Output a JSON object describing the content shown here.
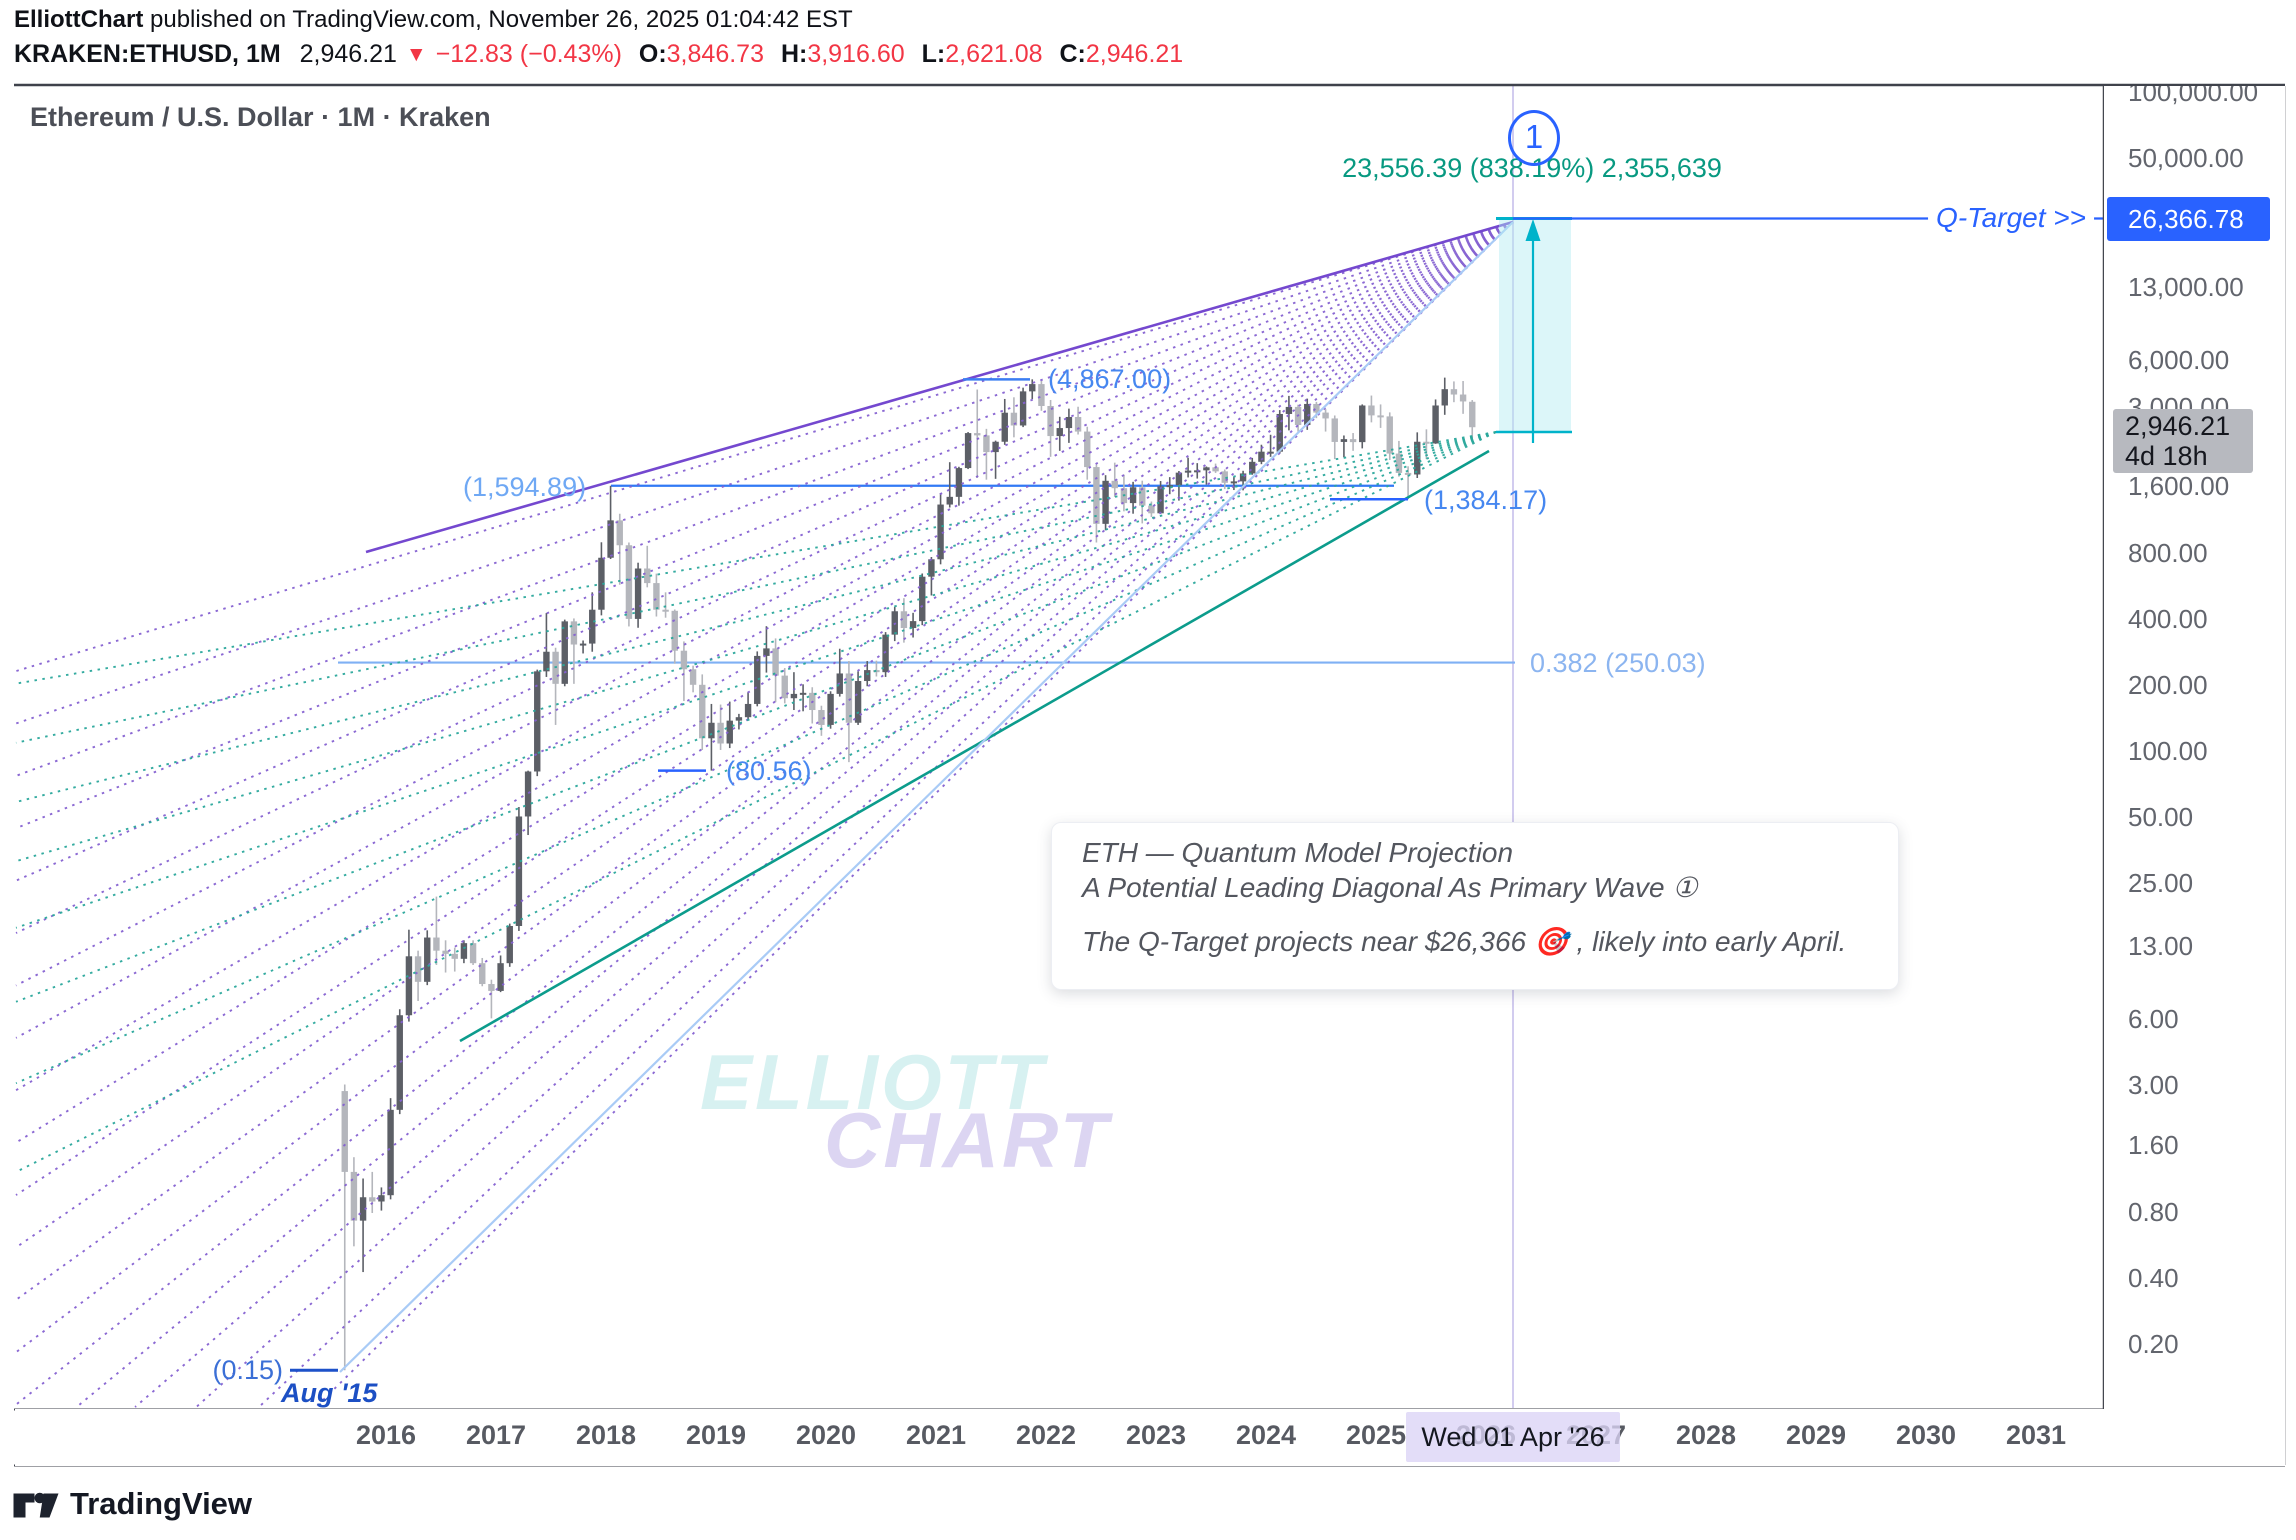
{
  "header": {
    "publisher": "ElliottChart",
    "published_suffix": " published on TradingView.com, November 26, 2025 01:04:42 EST",
    "symbol_interval": "KRAKEN:ETHUSD, 1M",
    "last_price": "2,946.21",
    "change_text": "−12.83 (−0.43%)",
    "open_label": "O:",
    "open": "3,846.73",
    "high_label": "H:",
    "high": "3,916.60",
    "low_label": "L:",
    "low": "2,621.08",
    "close_label": "C:",
    "close": "2,946.21"
  },
  "chart": {
    "title": "Ethereum / U.S. Dollar · 1M · Kraken",
    "watermark": {
      "line1": "ELLIOTT",
      "line2": "CHART"
    }
  },
  "annotations": {
    "wave_label": "1",
    "projection_text": "23,556.39 (838.19%) 2,355,639",
    "q_target_label": "Q-Target >>",
    "high_2021": "(4,867.00)",
    "high_2018": "(1,594.89)",
    "low_2025": "(1,384.17)",
    "low_2018": "(80.56)",
    "origin_low": "(0.15)",
    "origin_date": "Aug '15",
    "fib_level": "0.382 (250.03)"
  },
  "tooltip": {
    "line1": "ETH — Quantum Model Projection",
    "line2": "A Potential Leading Diagonal As Primary Wave ①",
    "line3": "The Q-Target projects near $26,366 🎯 , likely into early April."
  },
  "price_scale": {
    "ticks": [
      "100,000.00",
      "50,000.00",
      "13,000.00",
      "6,000.00",
      "1,600.00",
      "800.00",
      "400.00",
      "200.00",
      "100.00",
      "50.00",
      "25.00",
      "13.00",
      "6.00",
      "3.00",
      "1.60",
      "0.80",
      "0.40",
      "0.20"
    ],
    "hidden_tick": "3,000.00",
    "target_badge": "26,366.78",
    "price_badge": "2,946.21",
    "countdown": "4d 18h"
  },
  "time_axis": {
    "years": [
      "2016",
      "2017",
      "2018",
      "2019",
      "2020",
      "2021",
      "2022",
      "2023",
      "2024",
      "2025",
      "2026",
      "2027",
      "2028",
      "2029",
      "2030",
      "2031"
    ],
    "crosshair_label": "Wed 01 Apr '26"
  },
  "footer": {
    "brand": "TradingView"
  },
  "colors": {
    "accent_blue": "#2962ff",
    "teal_text": "#089981",
    "cyan_tool": "#00b3ca",
    "purple_line": "#7448cf",
    "purple_dotted": "#8561d1",
    "teal_dotted": "#2aa79b",
    "teal_solid": "#0c9c8c",
    "light_blue_line": "#a9cbf6",
    "red": "#f23645",
    "candle_up": "#5c5f66",
    "candle_down": "#b4b6bc",
    "crosshair": "#c7bfeb"
  },
  "chart_data": {
    "type": "candlestick",
    "symbol": "KRAKEN:ETHUSD",
    "interval": "1M",
    "scale": "logarithmic",
    "title": "Ethereum / U.S. Dollar · 1M · Kraken",
    "x_axis_years": [
      2016,
      2017,
      2018,
      2019,
      2020,
      2021,
      2022,
      2023,
      2024,
      2025,
      2026,
      2027,
      2028,
      2029,
      2030,
      2031
    ],
    "price_axis_ticks": [
      100000,
      50000,
      13000,
      6000,
      3000,
      1600,
      800,
      400,
      200,
      100,
      50,
      25,
      13,
      6,
      3,
      1.6,
      0.8,
      0.4,
      0.2
    ],
    "key_levels": {
      "q_target_price": 26366.78,
      "projection_price": 23556.39,
      "projection_percent": 838.19,
      "projection_alt_value": 2355639,
      "wave3_high_2021": 4867.0,
      "wave1_high_2018": 1594.89,
      "wave4_low_2025": 1384.17,
      "wave2_low_2018": 80.56,
      "origin_low_aug_2015": 0.15,
      "fib_0382_retrace": 250.03,
      "last_close": 2946.21,
      "apex_date_label": "Wed 01 Apr '26"
    },
    "candles_ohlc": [
      [
        2015,
        8,
        2.8,
        3.0,
        0.15,
        1.2
      ],
      [
        2015,
        9,
        1.2,
        1.4,
        0.55,
        0.72
      ],
      [
        2015,
        10,
        0.72,
        1.12,
        0.42,
        0.92
      ],
      [
        2015,
        11,
        0.92,
        1.2,
        0.78,
        0.88
      ],
      [
        2015,
        12,
        0.88,
        1.02,
        0.8,
        0.94
      ],
      [
        2016,
        1,
        0.94,
        2.6,
        0.9,
        2.3
      ],
      [
        2016,
        2,
        2.3,
        6.6,
        2.2,
        6.2
      ],
      [
        2016,
        3,
        6.2,
        15.2,
        5.8,
        11.5
      ],
      [
        2016,
        4,
        11.5,
        12.2,
        7.2,
        8.8
      ],
      [
        2016,
        5,
        8.8,
        15.1,
        8.5,
        14.0
      ],
      [
        2016,
        6,
        14.0,
        21.5,
        10.5,
        12.2
      ],
      [
        2016,
        7,
        12.2,
        13.6,
        9.7,
        11.8
      ],
      [
        2016,
        8,
        11.8,
        12.6,
        9.8,
        11.2
      ],
      [
        2016,
        9,
        11.2,
        13.6,
        10.7,
        13.2
      ],
      [
        2016,
        10,
        13.2,
        13.6,
        10.5,
        10.7
      ],
      [
        2016,
        11,
        10.7,
        11.3,
        8.4,
        8.6
      ],
      [
        2016,
        12,
        8.6,
        9.0,
        6.0,
        8.0
      ],
      [
        2017,
        1,
        8.0,
        11.6,
        7.9,
        10.7
      ],
      [
        2017,
        2,
        10.7,
        16.2,
        10.3,
        15.8
      ],
      [
        2017,
        3,
        15.8,
        55.0,
        15.0,
        49.8
      ],
      [
        2017,
        4,
        49.8,
        80.5,
        41.0,
        79.8
      ],
      [
        2017,
        5,
        79.8,
        232.0,
        76.0,
        228.0
      ],
      [
        2017,
        6,
        228,
        420,
        215,
        280
      ],
      [
        2017,
        7,
        280,
        292,
        130,
        200
      ],
      [
        2017,
        8,
        200,
        392,
        195,
        385
      ],
      [
        2017,
        9,
        385,
        397,
        200,
        302
      ],
      [
        2017,
        10,
        302,
        315,
        275,
        305
      ],
      [
        2017,
        11,
        305,
        522,
        280,
        435
      ],
      [
        2017,
        12,
        435,
        882,
        410,
        750
      ],
      [
        2018,
        1,
        750,
        1594.89,
        740,
        1110
      ],
      [
        2018,
        2,
        1110,
        1190,
        565,
        855
      ],
      [
        2018,
        3,
        855,
        880,
        365,
        395
      ],
      [
        2018,
        4,
        395,
        712,
        360,
        670
      ],
      [
        2018,
        5,
        670,
        850,
        550,
        575
      ],
      [
        2018,
        6,
        575,
        635,
        405,
        435
      ],
      [
        2018,
        7,
        435,
        522,
        400,
        430
      ],
      [
        2018,
        8,
        430,
        436,
        247,
        283
      ],
      [
        2018,
        9,
        283,
        312,
        167,
        233
      ],
      [
        2018,
        10,
        233,
        242,
        183,
        198
      ],
      [
        2018,
        11,
        198,
        221,
        100,
        113
      ],
      [
        2018,
        12,
        113,
        162,
        80.56,
        133
      ],
      [
        2019,
        1,
        133,
        161,
        100,
        107
      ],
      [
        2019,
        2,
        107,
        166,
        102,
        136
      ],
      [
        2019,
        3,
        136,
        146,
        124,
        141
      ],
      [
        2019,
        4,
        141,
        183,
        138,
        162
      ],
      [
        2019,
        5,
        162,
        281,
        158,
        268
      ],
      [
        2019,
        6,
        268,
        366,
        225,
        290
      ],
      [
        2019,
        7,
        290,
        322,
        165,
        218
      ],
      [
        2019,
        8,
        218,
        236,
        163,
        172
      ],
      [
        2019,
        9,
        172,
        226,
        152,
        180
      ],
      [
        2019,
        10,
        180,
        199,
        150,
        182
      ],
      [
        2019,
        11,
        182,
        193,
        132,
        152
      ],
      [
        2019,
        12,
        152,
        159,
        116,
        130
      ],
      [
        2020,
        1,
        130,
        185,
        125,
        180
      ],
      [
        2020,
        2,
        180,
        289,
        175,
        223
      ],
      [
        2020,
        3,
        223,
        254,
        88,
        133
      ],
      [
        2020,
        4,
        133,
        228,
        130,
        206
      ],
      [
        2020,
        5,
        206,
        254,
        195,
        231
      ],
      [
        2020,
        6,
        231,
        255,
        216,
        226
      ],
      [
        2020,
        7,
        226,
        344,
        215,
        335
      ],
      [
        2020,
        8,
        335,
        448,
        313,
        428
      ],
      [
        2020,
        9,
        428,
        491,
        308,
        359
      ],
      [
        2020,
        10,
        359,
        421,
        325,
        386
      ],
      [
        2020,
        11,
        386,
        636,
        370,
        615
      ],
      [
        2020,
        12,
        615,
        756,
        505,
        738
      ],
      [
        2021,
        1,
        738,
        1476,
        700,
        1310
      ],
      [
        2021,
        2,
        1310,
        2042,
        1270,
        1420
      ],
      [
        2021,
        3,
        1420,
        1946,
        1295,
        1920
      ],
      [
        2021,
        4,
        1920,
        2800,
        1900,
        2770
      ],
      [
        2021,
        5,
        2770,
        4376,
        1730,
        2705
      ],
      [
        2021,
        6,
        2705,
        2896,
        1700,
        2270
      ],
      [
        2021,
        7,
        2270,
        2560,
        1715,
        2530
      ],
      [
        2021,
        8,
        2530,
        3962,
        2450,
        3430
      ],
      [
        2021,
        9,
        3430,
        4032,
        2650,
        3000
      ],
      [
        2021,
        10,
        3000,
        4460,
        2950,
        4290
      ],
      [
        2021,
        11,
        4290,
        4867,
        3960,
        4630
      ],
      [
        2021,
        12,
        4630,
        4782,
        3500,
        3680
      ],
      [
        2022,
        1,
        3680,
        3920,
        2160,
        2685
      ],
      [
        2022,
        2,
        2685,
        3286,
        2300,
        2920
      ],
      [
        2022,
        3,
        2920,
        3580,
        2500,
        3280
      ],
      [
        2022,
        4,
        3280,
        3652,
        2730,
        2815
      ],
      [
        2022,
        5,
        2815,
        2962,
        1700,
        1940
      ],
      [
        2022,
        6,
        1940,
        1992,
        880,
        1070
      ],
      [
        2022,
        7,
        1070,
        1782,
        1000,
        1680
      ],
      [
        2022,
        8,
        1680,
        2032,
        1420,
        1555
      ],
      [
        2022,
        9,
        1555,
        1792,
        1220,
        1330
      ],
      [
        2022,
        10,
        1330,
        1662,
        1190,
        1570
      ],
      [
        2022,
        11,
        1570,
        1682,
        1075,
        1295
      ],
      [
        2022,
        12,
        1295,
        1352,
        1150,
        1195
      ],
      [
        2023,
        1,
        1195,
        1676,
        1190,
        1585
      ],
      [
        2023,
        2,
        1585,
        1746,
        1460,
        1605
      ],
      [
        2023,
        3,
        1605,
        1862,
        1365,
        1830
      ],
      [
        2023,
        4,
        1830,
        2142,
        1740,
        1870
      ],
      [
        2023,
        5,
        1870,
        2022,
        1720,
        1875
      ],
      [
        2023,
        6,
        1875,
        1952,
        1615,
        1935
      ],
      [
        2023,
        7,
        1935,
        2012,
        1825,
        1855
      ],
      [
        2023,
        8,
        1855,
        1892,
        1540,
        1645
      ],
      [
        2023,
        9,
        1645,
        1746,
        1525,
        1670
      ],
      [
        2023,
        10,
        1670,
        1866,
        1520,
        1815
      ],
      [
        2023,
        11,
        1815,
        2136,
        1790,
        2050
      ],
      [
        2023,
        12,
        2050,
        2452,
        2000,
        2280
      ],
      [
        2024,
        1,
        2280,
        2722,
        2160,
        2280
      ],
      [
        2024,
        2,
        2280,
        3526,
        2235,
        3385
      ],
      [
        2024,
        3,
        3385,
        4092,
        2850,
        3645
      ],
      [
        2024,
        4,
        3645,
        3732,
        2815,
        3015
      ],
      [
        2024,
        5,
        3015,
        3976,
        2865,
        3760
      ],
      [
        2024,
        6,
        3760,
        3842,
        3240,
        3435
      ],
      [
        2024,
        7,
        3435,
        3562,
        2815,
        3230
      ],
      [
        2024,
        8,
        3230,
        3332,
        2110,
        2525
      ],
      [
        2024,
        9,
        2525,
        2702,
        2150,
        2600
      ],
      [
        2024,
        10,
        2600,
        2772,
        2300,
        2520
      ],
      [
        2024,
        11,
        2520,
        3742,
        2360,
        3700
      ],
      [
        2024,
        12,
        3700,
        4106,
        3100,
        3335
      ],
      [
        2025,
        1,
        3335,
        3742,
        2925,
        3300
      ],
      [
        2025,
        2,
        3300,
        3442,
        2090,
        2235
      ],
      [
        2025,
        3,
        2235,
        2552,
        1755,
        1825
      ],
      [
        2025,
        4,
        1825,
        1956,
        1384.17,
        1795
      ],
      [
        2025,
        5,
        1795,
        2792,
        1730,
        2530
      ],
      [
        2025,
        6,
        2530,
        2882,
        2110,
        2485
      ],
      [
        2025,
        7,
        2485,
        3942,
        2475,
        3700
      ],
      [
        2025,
        8,
        3700,
        4955,
        3355,
        4390
      ],
      [
        2025,
        9,
        4390,
        4762,
        3830,
        4150
      ],
      [
        2025,
        10,
        4150,
        4782,
        3390,
        3860
      ],
      [
        2025,
        11,
        3846.73,
        3916.6,
        2621.08,
        2946.21
      ]
    ]
  }
}
